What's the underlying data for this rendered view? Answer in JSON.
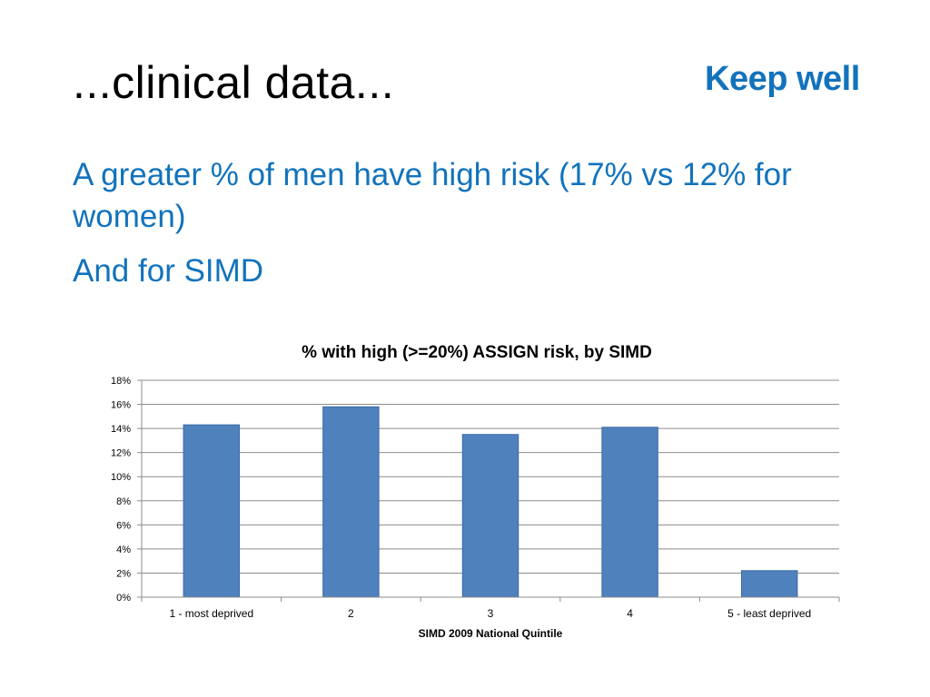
{
  "slide": {
    "title": "...clinical data...",
    "logo_text": "Keep well",
    "bullets": [
      "A greater % of men have high risk (17% vs 12% for women)",
      "And for SIMD"
    ]
  },
  "colors": {
    "accent": "#1273bc",
    "bar": "#4f81bd",
    "bar_border": "#3a6aa3",
    "grid": "#8c8c8c"
  },
  "chart_data": {
    "type": "bar",
    "title": "% with high (>=20%) ASSIGN risk, by SIMD",
    "xlabel": "SIMD 2009 National Quintile",
    "ylabel": "",
    "categories": [
      "1 - most deprived",
      "2",
      "3",
      "4",
      "5 - least deprived"
    ],
    "values": [
      14.3,
      15.8,
      13.5,
      14.1,
      2.2
    ],
    "ylim": [
      0,
      18
    ],
    "yticks": [
      0,
      2,
      4,
      6,
      8,
      10,
      12,
      14,
      16,
      18
    ],
    "ytick_labels": [
      "0%",
      "2%",
      "4%",
      "6%",
      "8%",
      "10%",
      "12%",
      "14%",
      "16%",
      "18%"
    ],
    "grid": true,
    "legend": "none"
  }
}
